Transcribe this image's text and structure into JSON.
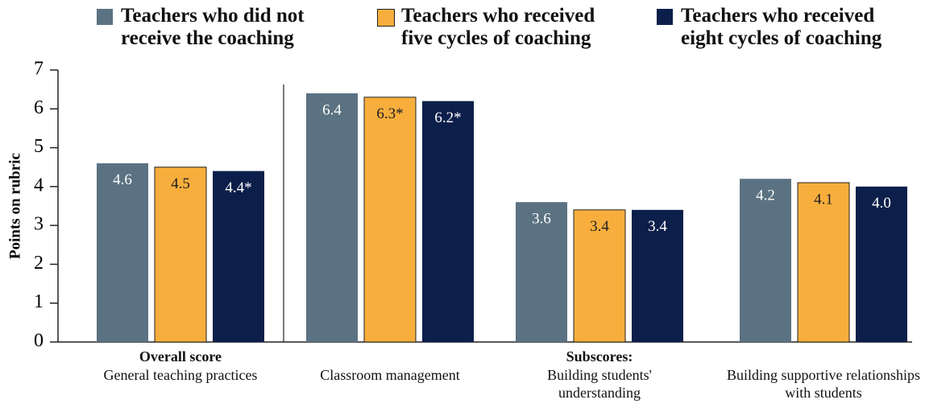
{
  "chart_data": {
    "type": "bar",
    "legend_position": "top",
    "y_label": "Points on rubric",
    "group_labels": [
      "Overall score",
      "Subscores:"
    ],
    "categories": [
      "General teaching practices",
      "Classroom management",
      "Building students' understanding",
      "Building supportive relationships with students"
    ],
    "series": [
      {
        "name": "Teachers who did not receive the coaching",
        "color": "#5b7282",
        "values": [
          4.6,
          6.4,
          3.6,
          4.2
        ],
        "value_labels": [
          "4.6",
          "6.4",
          "3.6",
          "4.2"
        ]
      },
      {
        "name": "Teachers who received five cycles of coaching",
        "color": "#f8ae3c",
        "values": [
          4.5,
          6.3,
          3.4,
          4.1
        ],
        "value_labels": [
          "4.5",
          "6.3*",
          "3.4",
          "4.1"
        ]
      },
      {
        "name": "Teachers who received eight cycles of coaching",
        "color": "#0c1f4a",
        "values": [
          4.4,
          6.2,
          3.4,
          4.0
        ],
        "value_labels": [
          "4.4*",
          "6.2*",
          "3.4",
          "4.0"
        ]
      }
    ],
    "ylim": [
      0,
      7
    ],
    "yticks": [
      0,
      1,
      2,
      3,
      4,
      5,
      6,
      7
    ],
    "grid": false
  }
}
